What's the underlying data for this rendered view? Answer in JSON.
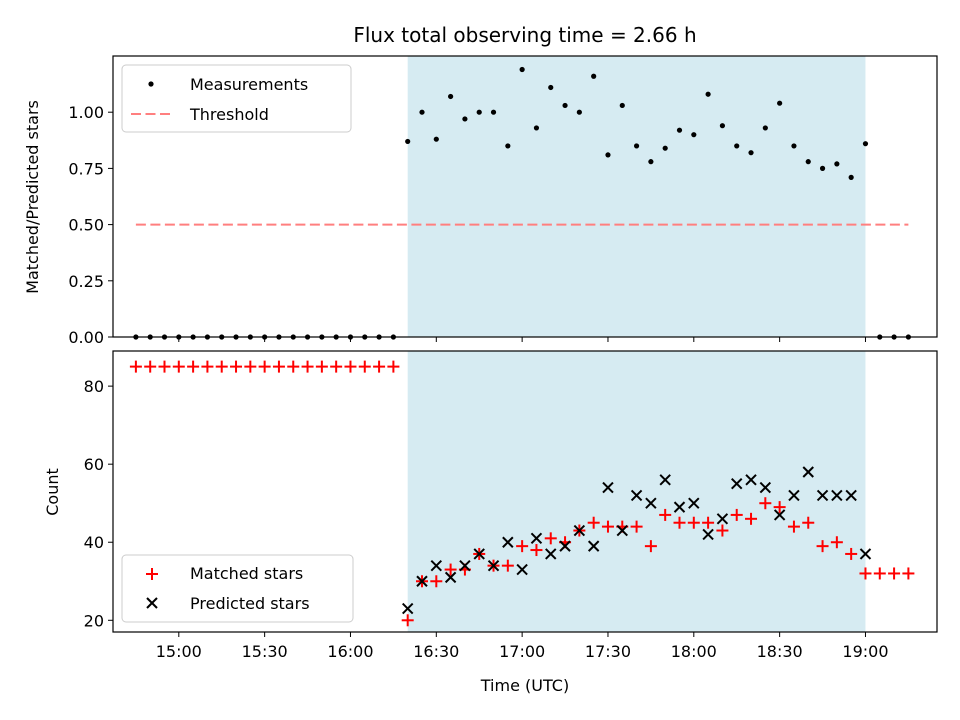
{
  "chart_data": [
    {
      "type": "scatter",
      "title": "Flux total observing time = 2.66 h",
      "ylabel": "Matched/Predicted stars",
      "ylim": [
        0,
        1.25
      ],
      "yticks": [
        "0.00",
        "0.25",
        "0.50",
        "0.75",
        "1.00"
      ],
      "shaded_span": {
        "from": "16:20",
        "to": "19:00",
        "color": "#add8e6"
      },
      "legend": {
        "position": "upper-left",
        "entries": [
          "Measurements",
          "Threshold"
        ]
      },
      "series": [
        {
          "name": "Measurements",
          "marker": "dot",
          "color": "#000000",
          "points": [
            [
              "14:45",
              0
            ],
            [
              "14:50",
              0
            ],
            [
              "14:55",
              0
            ],
            [
              "15:00",
              0
            ],
            [
              "15:05",
              0
            ],
            [
              "15:10",
              0
            ],
            [
              "15:15",
              0
            ],
            [
              "15:20",
              0
            ],
            [
              "15:25",
              0
            ],
            [
              "15:30",
              0
            ],
            [
              "15:35",
              0
            ],
            [
              "15:40",
              0
            ],
            [
              "15:45",
              0
            ],
            [
              "15:50",
              0
            ],
            [
              "15:55",
              0
            ],
            [
              "16:00",
              0
            ],
            [
              "16:05",
              0
            ],
            [
              "16:10",
              0
            ],
            [
              "16:15",
              0
            ],
            [
              "16:20",
              0.87
            ],
            [
              "16:25",
              1.0
            ],
            [
              "16:30",
              0.88
            ],
            [
              "16:35",
              1.07
            ],
            [
              "16:40",
              0.97
            ],
            [
              "16:45",
              1.0
            ],
            [
              "16:50",
              1.0
            ],
            [
              "16:55",
              0.85
            ],
            [
              "17:00",
              1.19
            ],
            [
              "17:05",
              0.93
            ],
            [
              "17:10",
              1.11
            ],
            [
              "17:15",
              1.03
            ],
            [
              "17:20",
              1.0
            ],
            [
              "17:25",
              1.16
            ],
            [
              "17:30",
              0.81
            ],
            [
              "17:35",
              1.03
            ],
            [
              "17:40",
              0.85
            ],
            [
              "17:45",
              0.78
            ],
            [
              "17:50",
              0.84
            ],
            [
              "17:55",
              0.92
            ],
            [
              "18:00",
              0.9
            ],
            [
              "18:05",
              1.08
            ],
            [
              "18:10",
              0.94
            ],
            [
              "18:15",
              0.85
            ],
            [
              "18:20",
              0.82
            ],
            [
              "18:25",
              0.93
            ],
            [
              "18:30",
              1.04
            ],
            [
              "18:35",
              0.85
            ],
            [
              "18:40",
              0.78
            ],
            [
              "18:45",
              0.75
            ],
            [
              "18:50",
              0.77
            ],
            [
              "18:55",
              0.71
            ],
            [
              "19:00",
              0.86
            ],
            [
              "19:05",
              0
            ],
            [
              "19:10",
              0
            ],
            [
              "19:15",
              0
            ]
          ]
        },
        {
          "name": "Threshold",
          "type": "line",
          "style": "dashed",
          "color": "#ff7f7f",
          "x": [
            "14:45",
            "19:15"
          ],
          "y": [
            0.5,
            0.5
          ]
        }
      ]
    },
    {
      "type": "scatter",
      "xlabel": "Time (UTC)",
      "ylabel": "Count",
      "ylim": [
        17,
        89
      ],
      "yticks": [
        "20",
        "40",
        "60",
        "80"
      ],
      "xlim": [
        "14:37",
        "19:25"
      ],
      "xticks": [
        "15:00",
        "15:30",
        "16:00",
        "16:30",
        "17:00",
        "17:30",
        "18:00",
        "18:30",
        "19:00"
      ],
      "shaded_span": {
        "from": "16:20",
        "to": "19:00",
        "color": "#add8e6"
      },
      "legend": {
        "position": "lower-left",
        "entries": [
          "Matched stars",
          "Predicted stars"
        ]
      },
      "series": [
        {
          "name": "Matched stars",
          "marker": "plus",
          "color": "#ff0000",
          "points": [
            [
              "14:45",
              85
            ],
            [
              "14:50",
              85
            ],
            [
              "14:55",
              85
            ],
            [
              "15:00",
              85
            ],
            [
              "15:05",
              85
            ],
            [
              "15:10",
              85
            ],
            [
              "15:15",
              85
            ],
            [
              "15:20",
              85
            ],
            [
              "15:25",
              85
            ],
            [
              "15:30",
              85
            ],
            [
              "15:35",
              85
            ],
            [
              "15:40",
              85
            ],
            [
              "15:45",
              85
            ],
            [
              "15:50",
              85
            ],
            [
              "15:55",
              85
            ],
            [
              "16:00",
              85
            ],
            [
              "16:05",
              85
            ],
            [
              "16:10",
              85
            ],
            [
              "16:15",
              85
            ],
            [
              "16:20",
              20
            ],
            [
              "16:25",
              30
            ],
            [
              "16:30",
              30
            ],
            [
              "16:35",
              33
            ],
            [
              "16:40",
              33
            ],
            [
              "16:45",
              37
            ],
            [
              "16:50",
              34
            ],
            [
              "16:55",
              34
            ],
            [
              "17:00",
              39
            ],
            [
              "17:05",
              38
            ],
            [
              "17:10",
              41
            ],
            [
              "17:15",
              40
            ],
            [
              "17:20",
              43
            ],
            [
              "17:25",
              45
            ],
            [
              "17:30",
              44
            ],
            [
              "17:35",
              44
            ],
            [
              "17:40",
              44
            ],
            [
              "17:45",
              39
            ],
            [
              "17:50",
              47
            ],
            [
              "17:55",
              45
            ],
            [
              "18:00",
              45
            ],
            [
              "18:05",
              45
            ],
            [
              "18:10",
              43
            ],
            [
              "18:15",
              47
            ],
            [
              "18:20",
              46
            ],
            [
              "18:25",
              50
            ],
            [
              "18:30",
              49
            ],
            [
              "18:35",
              44
            ],
            [
              "18:40",
              45
            ],
            [
              "18:45",
              39
            ],
            [
              "18:50",
              40
            ],
            [
              "18:55",
              37
            ],
            [
              "19:00",
              32
            ],
            [
              "19:05",
              32
            ],
            [
              "19:10",
              32
            ],
            [
              "19:15",
              32
            ]
          ]
        },
        {
          "name": "Predicted stars",
          "marker": "x",
          "color": "#000000",
          "points": [
            [
              "16:20",
              23
            ],
            [
              "16:25",
              30
            ],
            [
              "16:30",
              34
            ],
            [
              "16:35",
              31
            ],
            [
              "16:40",
              34
            ],
            [
              "16:45",
              37
            ],
            [
              "16:50",
              34
            ],
            [
              "16:55",
              40
            ],
            [
              "17:00",
              33
            ],
            [
              "17:05",
              41
            ],
            [
              "17:10",
              37
            ],
            [
              "17:15",
              39
            ],
            [
              "17:20",
              43
            ],
            [
              "17:25",
              39
            ],
            [
              "17:30",
              54
            ],
            [
              "17:35",
              43
            ],
            [
              "17:40",
              52
            ],
            [
              "17:45",
              50
            ],
            [
              "17:50",
              56
            ],
            [
              "17:55",
              49
            ],
            [
              "18:00",
              50
            ],
            [
              "18:05",
              42
            ],
            [
              "18:10",
              46
            ],
            [
              "18:15",
              55
            ],
            [
              "18:20",
              56
            ],
            [
              "18:25",
              54
            ],
            [
              "18:30",
              47
            ],
            [
              "18:35",
              52
            ],
            [
              "18:40",
              58
            ],
            [
              "18:45",
              52
            ],
            [
              "18:50",
              52
            ],
            [
              "18:55",
              52
            ],
            [
              "19:00",
              37
            ]
          ]
        }
      ]
    }
  ]
}
